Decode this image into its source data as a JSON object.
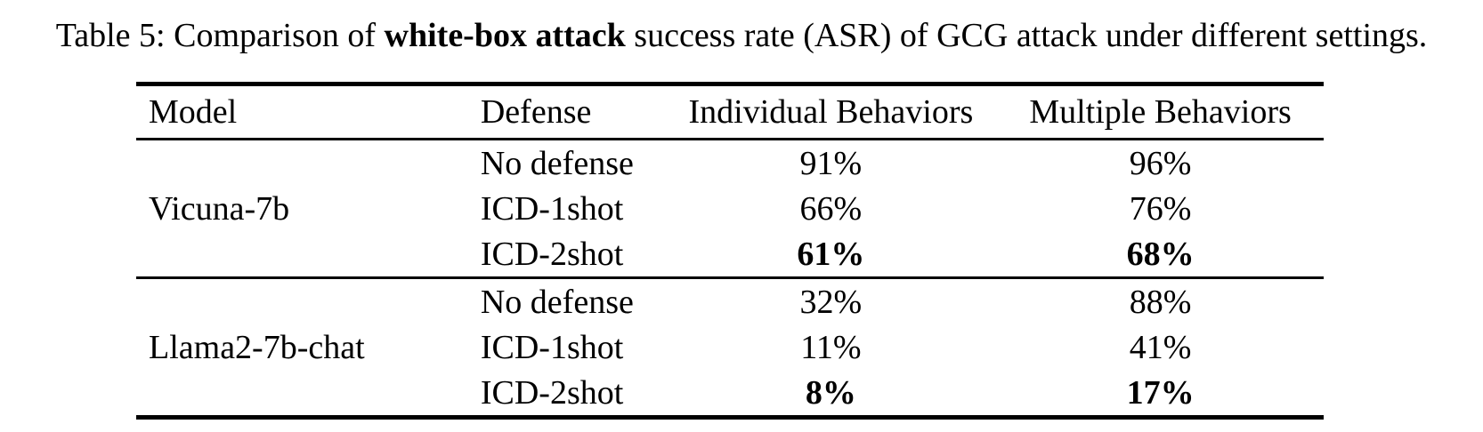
{
  "caption": {
    "prefix": "Table 5: Comparison of ",
    "bold": "white-box attack",
    "suffix": " success rate (ASR) of GCG attack under different settings."
  },
  "table": {
    "headers": {
      "model": "Model",
      "defense": "Defense",
      "individual": "Individual Behaviors",
      "multiple": "Multiple Behaviors"
    },
    "groups": [
      {
        "model": "Vicuna-7b",
        "rows": [
          {
            "defense": "No defense",
            "individual": "91%",
            "multiple": "96%",
            "weight": "normal"
          },
          {
            "defense": "ICD-1shot",
            "individual": "66%",
            "multiple": "76%",
            "weight": "normal"
          },
          {
            "defense": "ICD-2shot",
            "individual": "61%",
            "multiple": "68%",
            "weight": "bold"
          }
        ]
      },
      {
        "model": "Llama2-7b-chat",
        "rows": [
          {
            "defense": "No defense",
            "individual": "32%",
            "multiple": "88%",
            "weight": "normal"
          },
          {
            "defense": "ICD-1shot",
            "individual": "11%",
            "multiple": "41%",
            "weight": "normal"
          },
          {
            "defense": "ICD-2shot",
            "individual": "8%",
            "multiple": "17%",
            "weight": "bold"
          }
        ]
      }
    ]
  }
}
